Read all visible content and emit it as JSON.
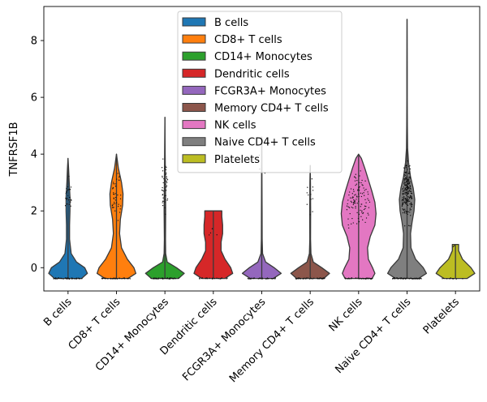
{
  "chart_data": {
    "type": "violin",
    "ylabel": "TNFRSF1B",
    "xlabel": "",
    "ylim": [
      -0.82,
      9.2
    ],
    "yticks": [
      0,
      2,
      4,
      6,
      8
    ],
    "legend_position": "upper-center",
    "categories": [
      "B cells",
      "CD8+ T cells",
      "CD14+ Monocytes",
      "Dendritic cells",
      "FCGR3A+ Monocytes",
      "Memory CD4+ T cells",
      "NK cells",
      "Naive CD4+ T cells",
      "Platelets"
    ],
    "colors": [
      "#1f77b4",
      "#ff7f0e",
      "#2ca02c",
      "#d62728",
      "#9467bd",
      "#8c564b",
      "#e377c2",
      "#7f7f7f",
      "#bcbd22"
    ],
    "violins": [
      {
        "name": "B cells",
        "min": -0.38,
        "max": 3.85,
        "profile": [
          [
            -0.38,
            0.35
          ],
          [
            -0.2,
            0.5
          ],
          [
            0.0,
            0.43
          ],
          [
            0.2,
            0.22
          ],
          [
            0.5,
            0.08
          ],
          [
            1.0,
            0.04
          ],
          [
            1.5,
            0.04
          ],
          [
            2.0,
            0.05
          ],
          [
            2.5,
            0.05
          ],
          [
            3.0,
            0.03
          ],
          [
            3.5,
            0.015
          ],
          [
            3.85,
            0.0
          ]
        ]
      },
      {
        "name": "CD8+ T cells",
        "min": -0.38,
        "max": 4.0,
        "profile": [
          [
            -0.38,
            0.3
          ],
          [
            -0.2,
            0.5
          ],
          [
            0.0,
            0.45
          ],
          [
            0.3,
            0.28
          ],
          [
            0.7,
            0.13
          ],
          [
            1.2,
            0.08
          ],
          [
            1.7,
            0.1
          ],
          [
            2.2,
            0.16
          ],
          [
            2.6,
            0.17
          ],
          [
            3.0,
            0.13
          ],
          [
            3.5,
            0.05
          ],
          [
            4.0,
            0.0
          ]
        ]
      },
      {
        "name": "CD14+ Monocytes",
        "min": -0.38,
        "max": 5.3,
        "profile": [
          [
            -0.38,
            0.35
          ],
          [
            -0.2,
            0.5
          ],
          [
            0.0,
            0.3
          ],
          [
            0.2,
            0.06
          ],
          [
            0.5,
            0.02
          ],
          [
            1.0,
            0.015
          ],
          [
            2.0,
            0.02
          ],
          [
            3.0,
            0.015
          ],
          [
            4.0,
            0.008
          ],
          [
            5.3,
            0.0
          ]
        ]
      },
      {
        "name": "Dendritic cells",
        "min": -0.38,
        "max": 2.0,
        "profile": [
          [
            -0.38,
            0.3
          ],
          [
            -0.2,
            0.5
          ],
          [
            0.0,
            0.45
          ],
          [
            0.3,
            0.3
          ],
          [
            0.6,
            0.2
          ],
          [
            0.9,
            0.2
          ],
          [
            1.2,
            0.24
          ],
          [
            1.5,
            0.24
          ],
          [
            1.8,
            0.22
          ],
          [
            2.0,
            0.22
          ]
        ]
      },
      {
        "name": "FCGR3A+ Monocytes",
        "min": -0.38,
        "max": 4.6,
        "profile": [
          [
            -0.38,
            0.3
          ],
          [
            -0.2,
            0.5
          ],
          [
            0.0,
            0.32
          ],
          [
            0.2,
            0.1
          ],
          [
            0.5,
            0.02
          ],
          [
            1.0,
            0.01
          ],
          [
            2.0,
            0.008
          ],
          [
            3.0,
            0.005
          ],
          [
            4.6,
            0.0
          ]
        ]
      },
      {
        "name": "Memory CD4+ T cells",
        "min": -0.38,
        "max": 3.6,
        "profile": [
          [
            -0.38,
            0.35
          ],
          [
            -0.2,
            0.5
          ],
          [
            0.0,
            0.3
          ],
          [
            0.2,
            0.08
          ],
          [
            0.5,
            0.02
          ],
          [
            1.0,
            0.01
          ],
          [
            2.0,
            0.012
          ],
          [
            3.0,
            0.008
          ],
          [
            3.6,
            0.0
          ]
        ]
      },
      {
        "name": "NK cells",
        "min": -0.38,
        "max": 4.0,
        "profile": [
          [
            -0.38,
            0.35
          ],
          [
            -0.2,
            0.42
          ],
          [
            0.0,
            0.36
          ],
          [
            0.3,
            0.25
          ],
          [
            0.7,
            0.23
          ],
          [
            1.1,
            0.3
          ],
          [
            1.5,
            0.42
          ],
          [
            1.9,
            0.45
          ],
          [
            2.3,
            0.42
          ],
          [
            2.7,
            0.34
          ],
          [
            3.1,
            0.25
          ],
          [
            3.5,
            0.16
          ],
          [
            3.85,
            0.07
          ],
          [
            4.0,
            0.0
          ]
        ]
      },
      {
        "name": "Naive CD4+ T cells",
        "min": -0.38,
        "max": 8.75,
        "profile": [
          [
            -0.38,
            0.3
          ],
          [
            -0.2,
            0.5
          ],
          [
            0.0,
            0.42
          ],
          [
            0.3,
            0.22
          ],
          [
            0.7,
            0.1
          ],
          [
            1.2,
            0.09
          ],
          [
            1.6,
            0.13
          ],
          [
            2.0,
            0.18
          ],
          [
            2.4,
            0.2
          ],
          [
            2.8,
            0.16
          ],
          [
            3.2,
            0.09
          ],
          [
            3.7,
            0.04
          ],
          [
            4.2,
            0.015
          ],
          [
            5.0,
            0.008
          ],
          [
            6.0,
            0.005
          ],
          [
            7.0,
            0.004
          ],
          [
            8.0,
            0.002
          ],
          [
            8.75,
            0.0
          ]
        ]
      },
      {
        "name": "Platelets",
        "min": -0.38,
        "max": 0.82,
        "profile": [
          [
            -0.38,
            0.3
          ],
          [
            -0.2,
            0.5
          ],
          [
            0.0,
            0.4
          ],
          [
            0.3,
            0.18
          ],
          [
            0.6,
            0.08
          ],
          [
            0.82,
            0.08
          ]
        ]
      }
    ],
    "scatter_points": [
      {
        "category": "B cells",
        "y_low": 1.7,
        "y_high": 3.5,
        "count": 28,
        "zero_count": 40
      },
      {
        "category": "CD8+ T cells",
        "y_low": 1.3,
        "y_high": 3.9,
        "count": 40,
        "zero_count": 40
      },
      {
        "category": "CD14+ Monocytes",
        "y_low": 1.6,
        "y_high": 4.2,
        "count": 42,
        "zero_count": 40
      },
      {
        "category": "Dendritic cells",
        "y_low": 0.8,
        "y_high": 1.6,
        "count": 5,
        "zero_count": 20
      },
      {
        "category": "FCGR3A+ Monocytes",
        "y_low": 2.3,
        "y_high": 4.4,
        "count": 3,
        "zero_count": 30
      },
      {
        "category": "Memory CD4+ T cells",
        "y_low": 1.6,
        "y_high": 3.4,
        "count": 12,
        "zero_count": 40
      },
      {
        "category": "NK cells",
        "y_low": 1.2,
        "y_high": 3.7,
        "count": 110,
        "zero_count": 40
      },
      {
        "category": "Naive CD4+ T cells",
        "y_low": 1.3,
        "y_high": 4.1,
        "count": 220,
        "zero_count": 60
      },
      {
        "category": "Platelets",
        "y_low": 0.6,
        "y_high": 0.82,
        "count": 2,
        "zero_count": 10
      }
    ],
    "legend": [
      "B cells",
      "CD8+ T cells",
      "CD14+ Monocytes",
      "Dendritic cells",
      "FCGR3A+ Monocytes",
      "Memory CD4+ T cells",
      "NK cells",
      "Naive CD4+ T cells",
      "Platelets"
    ]
  }
}
